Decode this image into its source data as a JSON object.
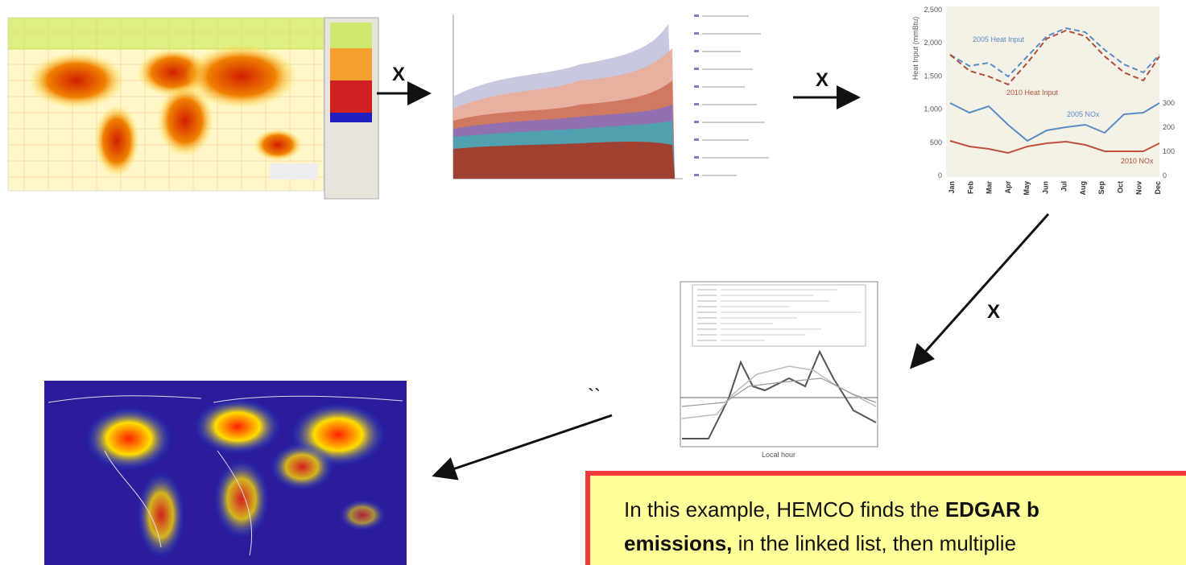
{
  "arrows": [
    {
      "label": "X"
    },
    {
      "label": "X"
    },
    {
      "label": "X"
    },
    {
      "label": "``"
    }
  ],
  "heat_chart": {
    "y_label": "Heat Input (mmBtu)",
    "yticks": [
      "2,500",
      "2,000",
      "1,500",
      "1,000",
      "500",
      "0"
    ],
    "y2ticks": [
      "300",
      "200",
      "100",
      "0"
    ],
    "months": [
      "Jan",
      "Feb",
      "Mar",
      "Apr",
      "May",
      "Jun",
      "Jul",
      "Aug",
      "Sep",
      "Oct",
      "Nov",
      "Dec"
    ],
    "series_labels": [
      "2005 Heat Input",
      "2010 Heat Input",
      "2005 NOx",
      "2010 NOx"
    ]
  },
  "diurnal_chart": {
    "x_label": "Local hour"
  },
  "callout": {
    "lines": [
      [
        {
          "text": "In this example, HEMCO finds the ",
          "bold": false
        },
        {
          "text": "EDGAR b",
          "bold": true
        }
      ],
      [
        {
          "text": "emissions,",
          "bold": true
        },
        {
          "text": " in the linked list, then multiplie",
          "bold": false
        }
      ]
    ]
  }
}
